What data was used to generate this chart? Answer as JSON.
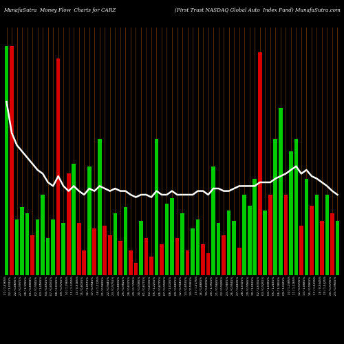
{
  "title_left": "MunafaSutra  Money Flow  Charts for CARZ",
  "title_right": "(First Trust NASDAQ Global Auto  Index Fund) MunafaSutra.com",
  "background_color": "#000000",
  "bar_color_list": [
    "green",
    "red",
    "green",
    "green",
    "green",
    "red",
    "green",
    "green",
    "green",
    "green",
    "red",
    "green",
    "red",
    "green",
    "red",
    "red",
    "green",
    "red",
    "green",
    "red",
    "red",
    "green",
    "red",
    "green",
    "red",
    "red",
    "green",
    "red",
    "red",
    "green",
    "red",
    "green",
    "green",
    "red",
    "green",
    "red",
    "green",
    "green",
    "red",
    "red",
    "green",
    "green",
    "red",
    "green",
    "green",
    "red",
    "green",
    "green",
    "green",
    "red",
    "green",
    "red",
    "green",
    "green",
    "red",
    "green",
    "green",
    "red",
    "green",
    "red",
    "green",
    "red",
    "green",
    "red",
    "green"
  ],
  "bar_heights": [
    1.85,
    1.85,
    0.45,
    0.55,
    0.5,
    0.32,
    0.45,
    0.65,
    0.3,
    0.45,
    1.75,
    0.42,
    0.82,
    0.9,
    0.42,
    0.2,
    0.88,
    0.38,
    1.1,
    0.4,
    0.32,
    0.5,
    0.28,
    0.55,
    0.2,
    0.1,
    0.44,
    0.3,
    0.15,
    1.1,
    0.25,
    0.58,
    0.62,
    0.3,
    0.5,
    0.2,
    0.38,
    0.45,
    0.25,
    0.18,
    0.88,
    0.42,
    0.32,
    0.52,
    0.44,
    0.22,
    0.65,
    0.56,
    0.78,
    1.8,
    0.52,
    0.65,
    1.1,
    1.35,
    0.65,
    1.0,
    1.1,
    0.4,
    0.78,
    0.56,
    0.65,
    0.44,
    0.65,
    0.5,
    0.44
  ],
  "line_values": [
    1.4,
    1.15,
    1.05,
    1.0,
    0.95,
    0.9,
    0.85,
    0.82,
    0.75,
    0.72,
    0.8,
    0.72,
    0.68,
    0.72,
    0.68,
    0.65,
    0.7,
    0.68,
    0.72,
    0.7,
    0.68,
    0.7,
    0.68,
    0.68,
    0.65,
    0.63,
    0.65,
    0.65,
    0.63,
    0.68,
    0.65,
    0.65,
    0.68,
    0.65,
    0.65,
    0.65,
    0.65,
    0.68,
    0.68,
    0.65,
    0.7,
    0.7,
    0.68,
    0.68,
    0.7,
    0.72,
    0.72,
    0.72,
    0.72,
    0.75,
    0.75,
    0.75,
    0.78,
    0.8,
    0.82,
    0.85,
    0.88,
    0.82,
    0.85,
    0.8,
    0.78,
    0.75,
    0.72,
    0.68,
    0.65
  ],
  "labels": [
    "21 / 1,4365%",
    "22 / 1,0315%",
    "22 / 0,8685%",
    "27 / 0,9975%",
    "28 / 1,1095%",
    "01 / 0,8888%",
    "02 / 0,9945%",
    "03 / 1,0585%",
    "04 / 0,8525%",
    "07 / 0,8165%",
    "08 / 2,8325%",
    "09 / 0,9755%",
    "10 / 1,1965%",
    "11 / 1,1255%",
    "14 / 0,9185%",
    "15 / 0,8035%",
    "16 / 1,0575%",
    "17 / 0,9545%",
    "18 / 1,2125%",
    "21 / 0,9835%",
    "22 / 0,9445%",
    "23 / 0,9755%",
    "24 / 0,8695%",
    "25 / 0,9825%",
    "28 / 0,8375%",
    "29 / 0,7785%",
    "30 / 0,9385%",
    "01 / 0,8775%",
    "02 / 0,8335%",
    "05 / 1,2255%",
    "06 / 0,8775%",
    "07 / 0,9935%",
    "08 / 1,0035%",
    "09 / 0,8875%",
    "12 / 0,9645%",
    "13 / 0,8535%",
    "14 / 0,9365%",
    "15 / 1,0175%",
    "16 / 0,8885%",
    "19 / 0,8305%",
    "20 / 1,1555%",
    "21 / 0,9685%",
    "22 / 0,9285%",
    "23 / 0,9875%",
    "26 / 0,9545%",
    "27 / 0,8635%",
    "28 / 1,0325%",
    "29 / 0,9985%",
    "30 / 1,0625%",
    "02 / 2,6355%",
    "03 / 0,9265%",
    "04 / 1,0385%",
    "05 / 1,2185%",
    "06 / 1,3855%",
    "09 / 1,0425%",
    "10 / 1,1585%",
    "11 / 1,2265%",
    "12 / 0,9705%",
    "13 / 1,0885%",
    "16 / 0,9965%",
    "17 / 1,0435%",
    "18 / 0,9445%",
    "19 / 1,0425%",
    "20 / 0,9795%",
    "23 / 0,9565%"
  ],
  "grid_color": "#5a3000",
  "ylim": [
    0,
    2.0
  ]
}
